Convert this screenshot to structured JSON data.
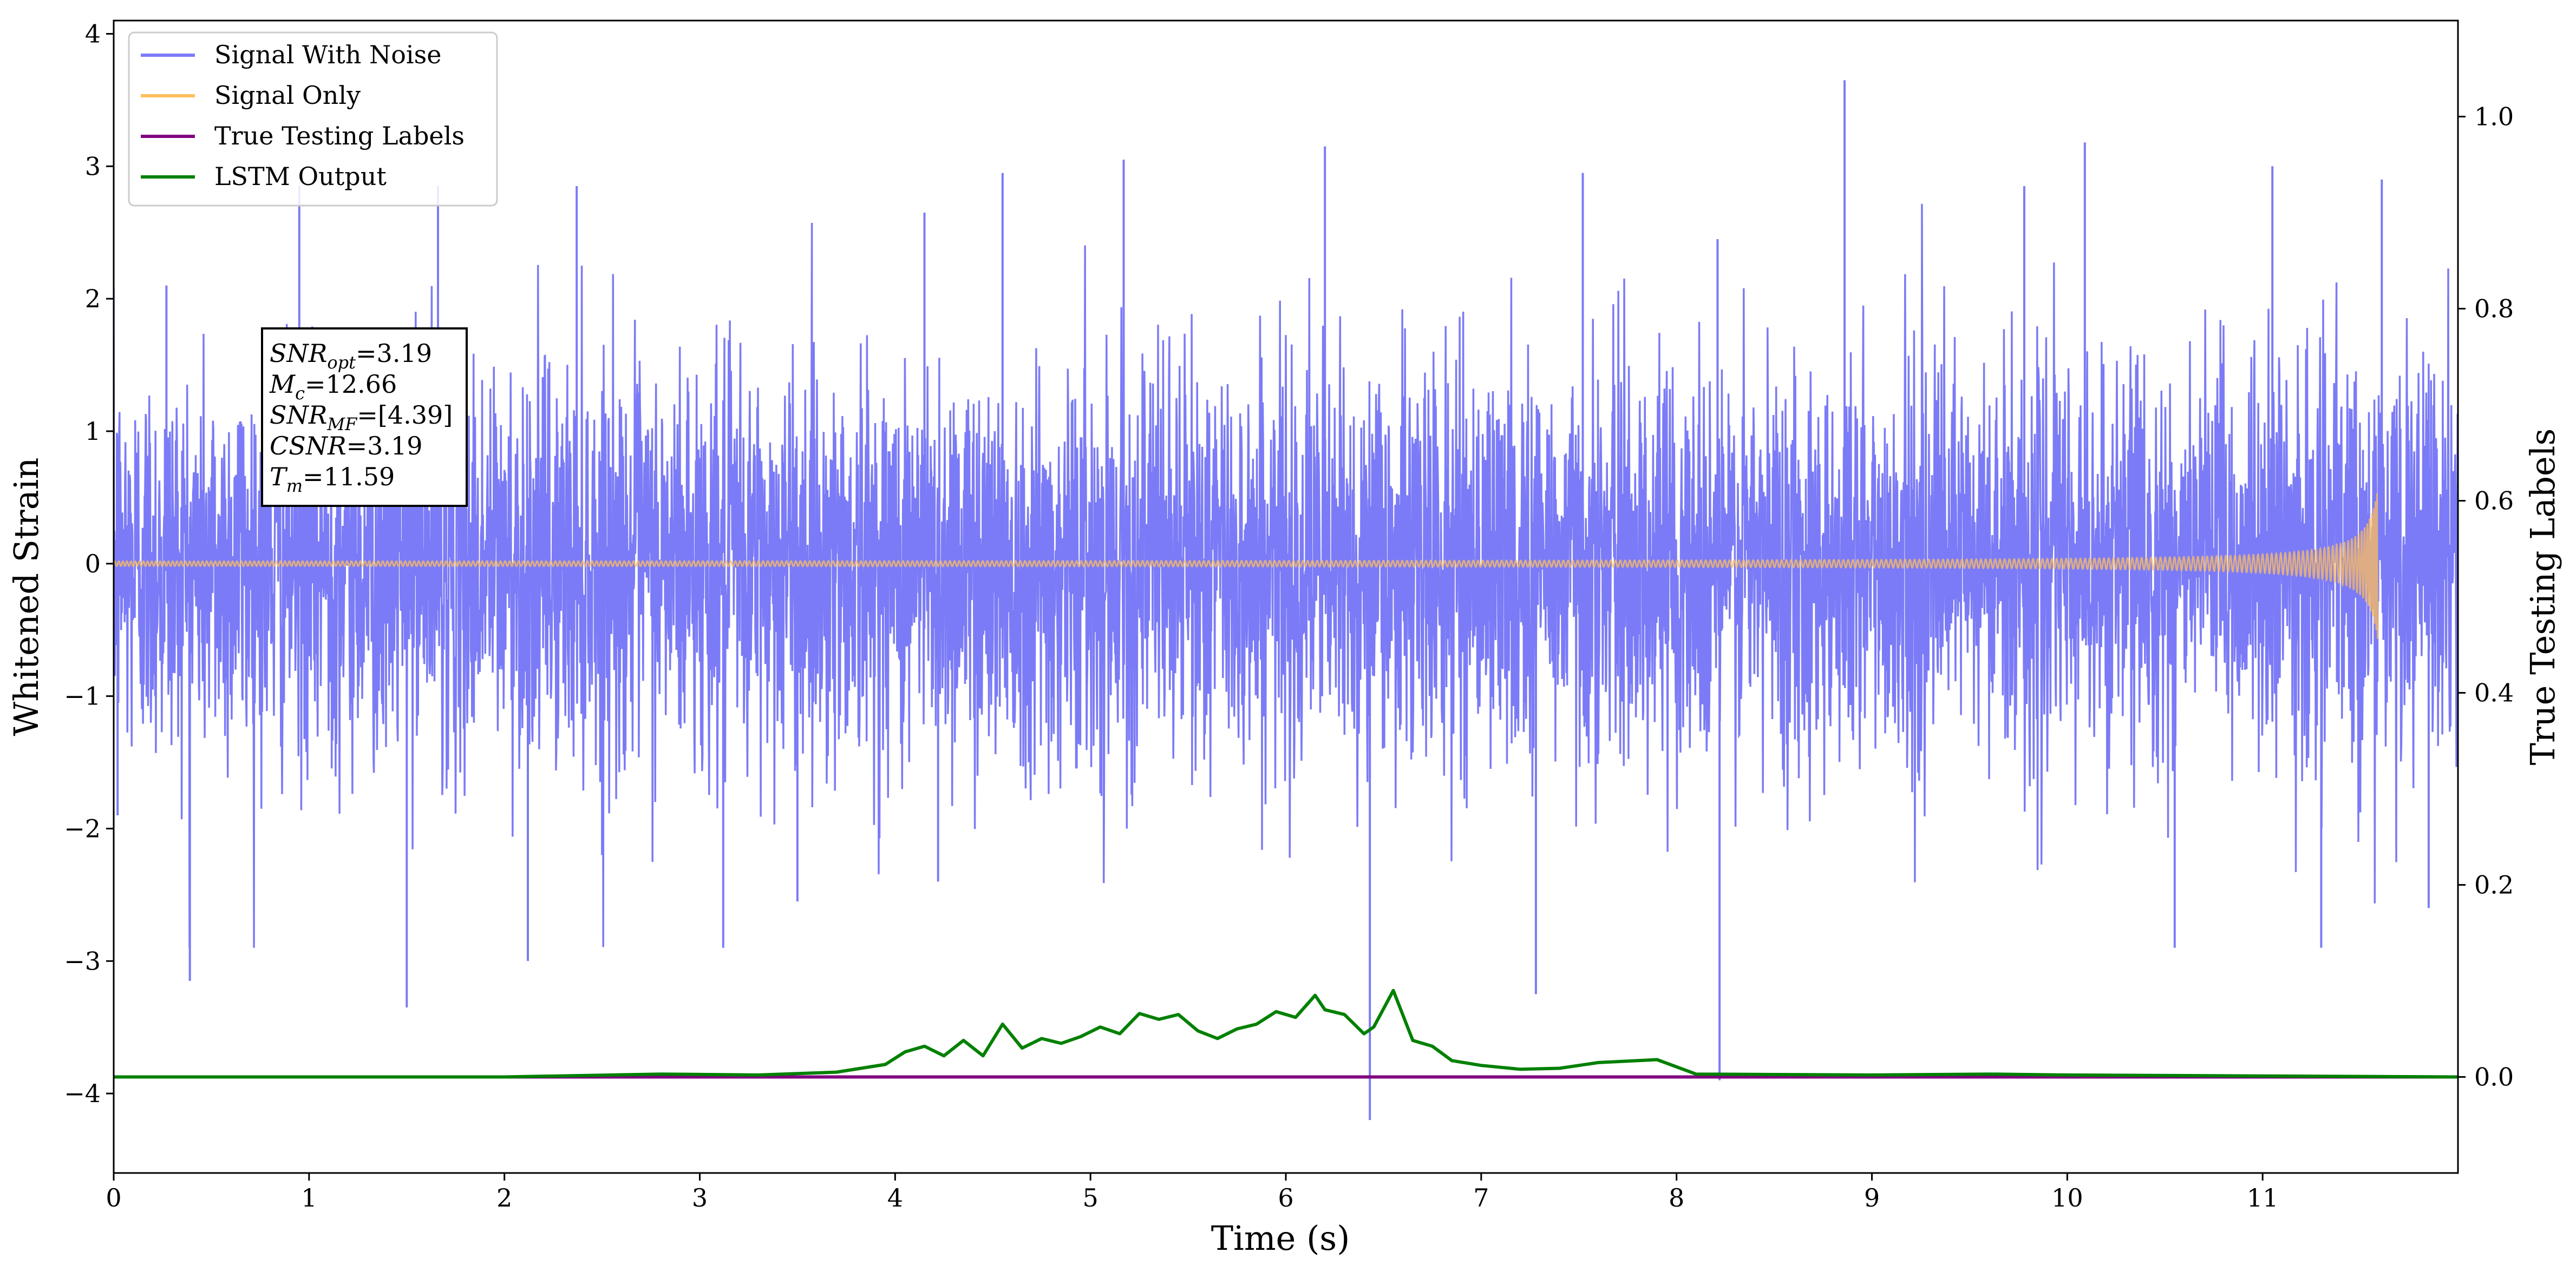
{
  "chart_data": {
    "type": "line",
    "title": "",
    "xlabel": "Time (s)",
    "ylabel": "Whitened Strain",
    "ylabel_right": "True Testing Labels",
    "xlim": [
      0,
      12
    ],
    "ylim": [
      -4.6,
      4.1
    ],
    "ylim_right": [
      -0.1,
      1.1
    ],
    "x_ticks": [
      "0",
      "1",
      "2",
      "3",
      "4",
      "5",
      "6",
      "7",
      "8",
      "9",
      "10",
      "11"
    ],
    "y_ticks": [
      "−4",
      "−3",
      "−2",
      "−1",
      "0",
      "1",
      "2",
      "3",
      "4"
    ],
    "y_ticks_right": [
      "0.0",
      "0.2",
      "0.4",
      "0.6",
      "0.8",
      "1.0"
    ],
    "grid": false,
    "legend_position": "top-left",
    "series": [
      {
        "name": "Signal With Noise",
        "color": "#7b7bf7",
        "description_kind": "dense-noise",
        "noise_std": 0.75,
        "peaks": [
          [
            0.02,
            -1.9
          ],
          [
            0.27,
            2.1
          ],
          [
            0.39,
            -3.15
          ],
          [
            0.95,
            2.85
          ],
          [
            1.5,
            -3.35
          ],
          [
            1.66,
            2.85
          ],
          [
            2.12,
            -3.0
          ],
          [
            2.37,
            2.85
          ],
          [
            2.5,
            -2.2
          ],
          [
            3.12,
            -2.9
          ],
          [
            3.5,
            -2.55
          ],
          [
            4.15,
            2.65
          ],
          [
            4.22,
            -2.4
          ],
          [
            4.55,
            2.95
          ],
          [
            5.17,
            3.05
          ],
          [
            6.2,
            3.15
          ],
          [
            6.43,
            -4.2
          ],
          [
            7.28,
            -3.25
          ],
          [
            7.52,
            2.95
          ],
          [
            8.22,
            -3.9
          ],
          [
            8.21,
            2.45
          ],
          [
            8.86,
            3.65
          ],
          [
            9.78,
            2.85
          ],
          [
            10.09,
            3.18
          ],
          [
            10.55,
            -2.9
          ],
          [
            11.05,
            3.0
          ],
          [
            11.3,
            -2.9
          ],
          [
            11.61,
            2.9
          ],
          [
            11.85,
            -2.6
          ]
        ]
      },
      {
        "name": "Signal Only",
        "color": "#ffbe5c",
        "description_kind": "chirp",
        "merger_time": 11.59,
        "max_amplitude": 0.58
      },
      {
        "name": "True Testing Labels",
        "color": "#800080",
        "axis": "right",
        "x": [
          0,
          12
        ],
        "values": [
          0.0,
          0.0
        ]
      },
      {
        "name": "LSTM Output",
        "color": "#008000",
        "axis": "right",
        "x": [
          0.0,
          1.0,
          2.0,
          2.8,
          3.3,
          3.7,
          3.95,
          4.05,
          4.15,
          4.25,
          4.35,
          4.45,
          4.55,
          4.65,
          4.75,
          4.85,
          4.95,
          5.05,
          5.15,
          5.25,
          5.35,
          5.45,
          5.55,
          5.65,
          5.75,
          5.85,
          5.95,
          6.05,
          6.15,
          6.2,
          6.3,
          6.4,
          6.45,
          6.55,
          6.65,
          6.75,
          6.85,
          7.0,
          7.2,
          7.4,
          7.6,
          7.9,
          8.1,
          9.0,
          9.6,
          10.0,
          11.0,
          12.0
        ],
        "values": [
          0.0,
          0.0,
          0.0,
          0.003,
          0.002,
          0.005,
          0.013,
          0.026,
          0.032,
          0.022,
          0.038,
          0.022,
          0.055,
          0.03,
          0.04,
          0.035,
          0.042,
          0.052,
          0.045,
          0.066,
          0.06,
          0.065,
          0.048,
          0.04,
          0.05,
          0.055,
          0.068,
          0.062,
          0.085,
          0.07,
          0.065,
          0.045,
          0.052,
          0.09,
          0.038,
          0.032,
          0.017,
          0.012,
          0.008,
          0.009,
          0.015,
          0.018,
          0.003,
          0.002,
          0.003,
          0.002,
          0.001,
          0.0
        ]
      }
    ],
    "annotation": {
      "lines": [
        {
          "sym": "SNR",
          "sub": "opt",
          "val": "=3.19"
        },
        {
          "sym": "M",
          "sub": "c",
          "val": "=12.66"
        },
        {
          "sym": "SNR",
          "sub": "MF",
          "val": "=[4.39]"
        },
        {
          "sym": "CSNR",
          "sub": "",
          "val": "=3.19"
        },
        {
          "sym": "T",
          "sub": "m",
          "val": "=11.59"
        }
      ]
    }
  }
}
